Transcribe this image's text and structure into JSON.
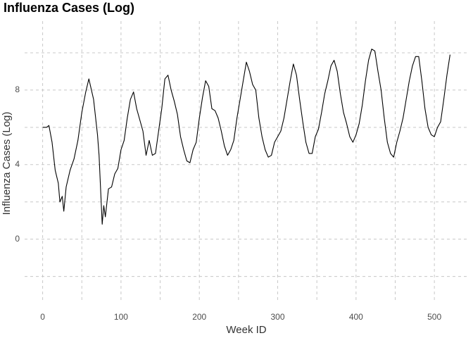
{
  "chart_data": {
    "type": "line",
    "title": "Influenza Cases (Log)",
    "x_label": "Week ID",
    "y_label": "Influenza Cases (Log)",
    "x": [
      0,
      5,
      8,
      12,
      16,
      20,
      22,
      25,
      27,
      30,
      35,
      40,
      45,
      50,
      55,
      59,
      65,
      70,
      72,
      76,
      78,
      80,
      84,
      88,
      92,
      96,
      100,
      104,
      108,
      112,
      116,
      120,
      124,
      128,
      132,
      136,
      140,
      144,
      148,
      152,
      156,
      160,
      164,
      168,
      172,
      176,
      180,
      184,
      188,
      192,
      196,
      200,
      204,
      208,
      212,
      216,
      220,
      224,
      228,
      232,
      236,
      240,
      244,
      248,
      252,
      256,
      260,
      264,
      268,
      272,
      276,
      280,
      284,
      288,
      292,
      296,
      300,
      304,
      308,
      312,
      316,
      320,
      324,
      328,
      332,
      336,
      340,
      344,
      348,
      352,
      356,
      360,
      364,
      368,
      372,
      376,
      380,
      384,
      388,
      392,
      396,
      400,
      404,
      408,
      412,
      416,
      420,
      424,
      428,
      432,
      436,
      440,
      444,
      448,
      452,
      456,
      460,
      464,
      468,
      472,
      476,
      480,
      484,
      488,
      492,
      496,
      500,
      504,
      508,
      512,
      516,
      520
    ],
    "values": [
      6.0,
      6.0,
      6.1,
      5.2,
      3.7,
      3.0,
      2.0,
      2.3,
      1.5,
      2.8,
      3.7,
      4.3,
      5.3,
      6.8,
      7.9,
      8.6,
      7.5,
      5.6,
      4.5,
      0.8,
      1.8,
      1.2,
      2.7,
      2.8,
      3.5,
      3.8,
      4.8,
      5.3,
      6.5,
      7.5,
      7.9,
      7.0,
      6.4,
      5.8,
      4.5,
      5.3,
      4.5,
      4.6,
      5.8,
      7.0,
      8.6,
      8.8,
      8.0,
      7.4,
      6.7,
      5.5,
      4.8,
      4.2,
      4.1,
      4.8,
      5.2,
      6.5,
      7.6,
      8.5,
      8.2,
      7.0,
      6.9,
      6.5,
      5.8,
      5.0,
      4.5,
      4.8,
      5.3,
      6.5,
      7.5,
      8.5,
      9.5,
      9.0,
      8.3,
      8.0,
      6.5,
      5.5,
      4.8,
      4.4,
      4.5,
      5.2,
      5.5,
      5.8,
      6.5,
      7.5,
      8.5,
      9.4,
      8.8,
      7.5,
      6.3,
      5.2,
      4.6,
      4.6,
      5.5,
      5.9,
      6.8,
      7.8,
      8.5,
      9.3,
      9.6,
      9.0,
      7.8,
      6.8,
      6.2,
      5.5,
      5.2,
      5.6,
      6.2,
      7.2,
      8.5,
      9.6,
      10.2,
      10.1,
      9.0,
      8.0,
      6.5,
      5.2,
      4.6,
      4.4,
      5.2,
      5.8,
      6.5,
      7.5,
      8.5,
      9.3,
      9.8,
      9.8,
      8.5,
      7.0,
      6.0,
      5.6,
      5.5,
      6.0,
      6.3,
      7.5,
      8.8,
      9.9
    ],
    "color": "#000000",
    "xlim": [
      -23,
      543
    ],
    "xticks": [
      0,
      100,
      200,
      300,
      400,
      500
    ],
    "xminor": [
      50,
      150,
      250,
      350,
      450
    ],
    "ylim": [
      -3.3,
      11.7
    ],
    "yticks": [
      0,
      4,
      8
    ],
    "yminor": [
      -2,
      2,
      6,
      10
    ],
    "grid": true
  }
}
